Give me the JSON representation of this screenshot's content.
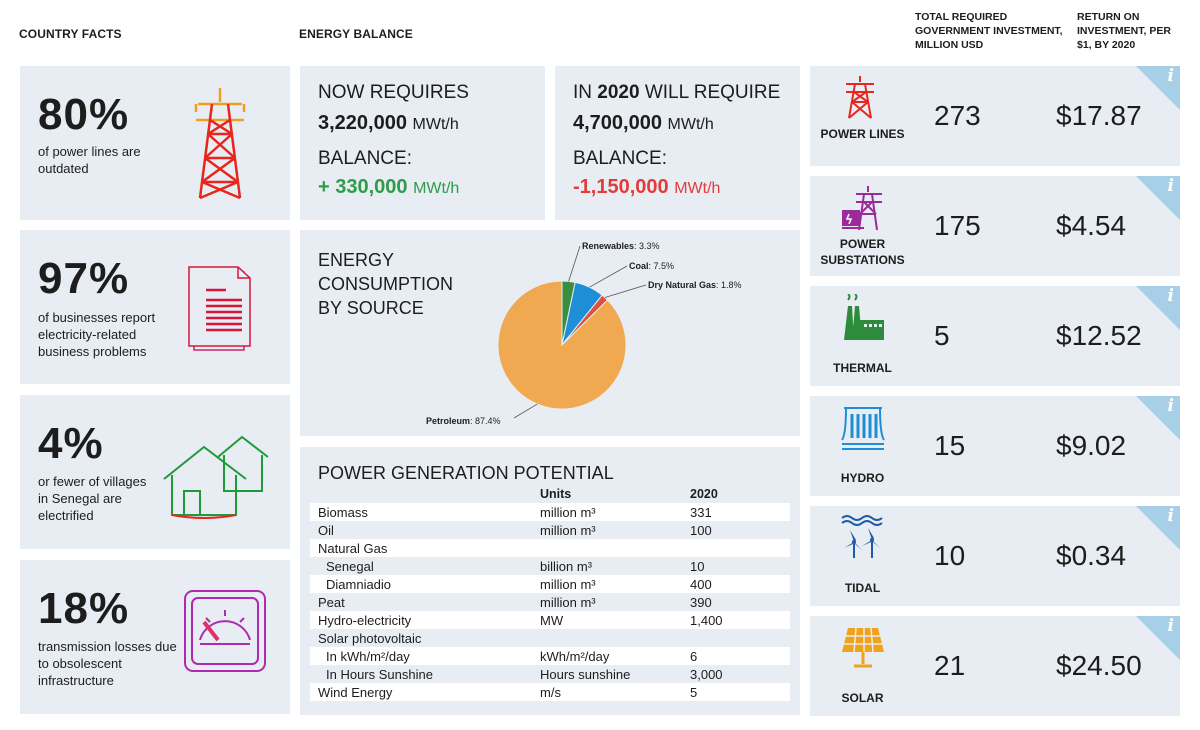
{
  "headers": {
    "country_facts": "COUNTRY FACTS",
    "energy_balance": "ENERGY BALANCE",
    "investment": "TOTAL REQUIRED GOVERNMENT INVESTMENT, MILLION USD",
    "roi": "RETURN ON INVESTMENT, PER $1, BY 2020"
  },
  "facts": [
    {
      "pct": "80%",
      "text": "of power lines are outdated",
      "icon": "power-tower-icon"
    },
    {
      "pct": "97%",
      "text": "of businesses report electricity-related business problems",
      "icon": "document-icon"
    },
    {
      "pct": "4%",
      "text": "or fewer of villages in Senegal are electrified",
      "icon": "houses-icon"
    },
    {
      "pct": "18%",
      "text": "transmission losses due to obsolescent infrastructure",
      "icon": "meter-icon"
    }
  ],
  "balance_now": {
    "label": "NOW REQUIRES",
    "value": "3,220,000",
    "unit": "MWt/h",
    "balance_label": "BALANCE:",
    "balance_value": "+ 330,000",
    "balance_unit": "MWt/h"
  },
  "balance_2020": {
    "label_pre": "IN ",
    "label_year": "2020",
    "label_post": " WILL REQUIRE",
    "value": "4,700,000",
    "unit": "MWt/h",
    "balance_label": "BALANCE:",
    "balance_value": "-1,150,000",
    "balance_unit": "MWt/h"
  },
  "consumption_title": "ENERGY CONSUMPTION BY SOURCE",
  "chart_data": {
    "type": "pie",
    "title": "ENERGY CONSUMPTION BY SOURCE",
    "slices": [
      {
        "name": "Petroleum",
        "value": 87.4,
        "label": "87.4%",
        "color": "#f0a950"
      },
      {
        "name": "Renewables",
        "value": 3.3,
        "label": "3.3%",
        "color": "#3a8e3f"
      },
      {
        "name": "Coal",
        "value": 7.5,
        "label": "7.5%",
        "color": "#1e8fd6"
      },
      {
        "name": "Dry Natural Gas",
        "value": 1.8,
        "label": "1.8%",
        "color": "#e0503a"
      }
    ]
  },
  "potential": {
    "title": "POWER GENERATION POTENTIAL",
    "col_units": "Units",
    "col_year": "2020",
    "rows": [
      {
        "name": "Biomass",
        "unit": "million m³",
        "value": "331"
      },
      {
        "name": "Oil",
        "unit": "million m³",
        "value": "100"
      },
      {
        "name": "Natural Gas",
        "unit": "",
        "value": ""
      },
      {
        "name": "Senegal",
        "unit": "billion m³",
        "value": "10"
      },
      {
        "name": "Diamniadio",
        "unit": "million m³",
        "value": "400"
      },
      {
        "name": "Peat",
        "unit": "million m³",
        "value": "390"
      },
      {
        "name": "Hydro-electricity",
        "unit": "MW",
        "value": "1,400"
      },
      {
        "name": "Solar photovoltaic",
        "unit": "",
        "value": ""
      },
      {
        "name": "In kWh/m²/day",
        "unit": "kWh/m²/day",
        "value": "6"
      },
      {
        "name": "In Hours Sunshine",
        "unit": "Hours sunshine",
        "value": "3,000"
      },
      {
        "name": "Wind Energy",
        "unit": "m/s",
        "value": "5"
      }
    ]
  },
  "investments": [
    {
      "label": "POWER LINES",
      "investment": "273",
      "roi": "$17.87",
      "icon": "power-tower-icon"
    },
    {
      "label": "POWER SUBSTATIONS",
      "investment": "175",
      "roi": "$4.54",
      "icon": "substation-icon"
    },
    {
      "label": "THERMAL",
      "investment": "5",
      "roi": "$12.52",
      "icon": "thermal-plant-icon"
    },
    {
      "label": "HYDRO",
      "investment": "15",
      "roi": "$9.02",
      "icon": "dam-icon"
    },
    {
      "label": "TIDAL",
      "investment": "10",
      "roi": "$0.34",
      "icon": "wind-turbines-icon"
    },
    {
      "label": "SOLAR",
      "investment": "21",
      "roi": "$24.50",
      "icon": "solar-panel-icon"
    }
  ],
  "info_glyph": "i"
}
